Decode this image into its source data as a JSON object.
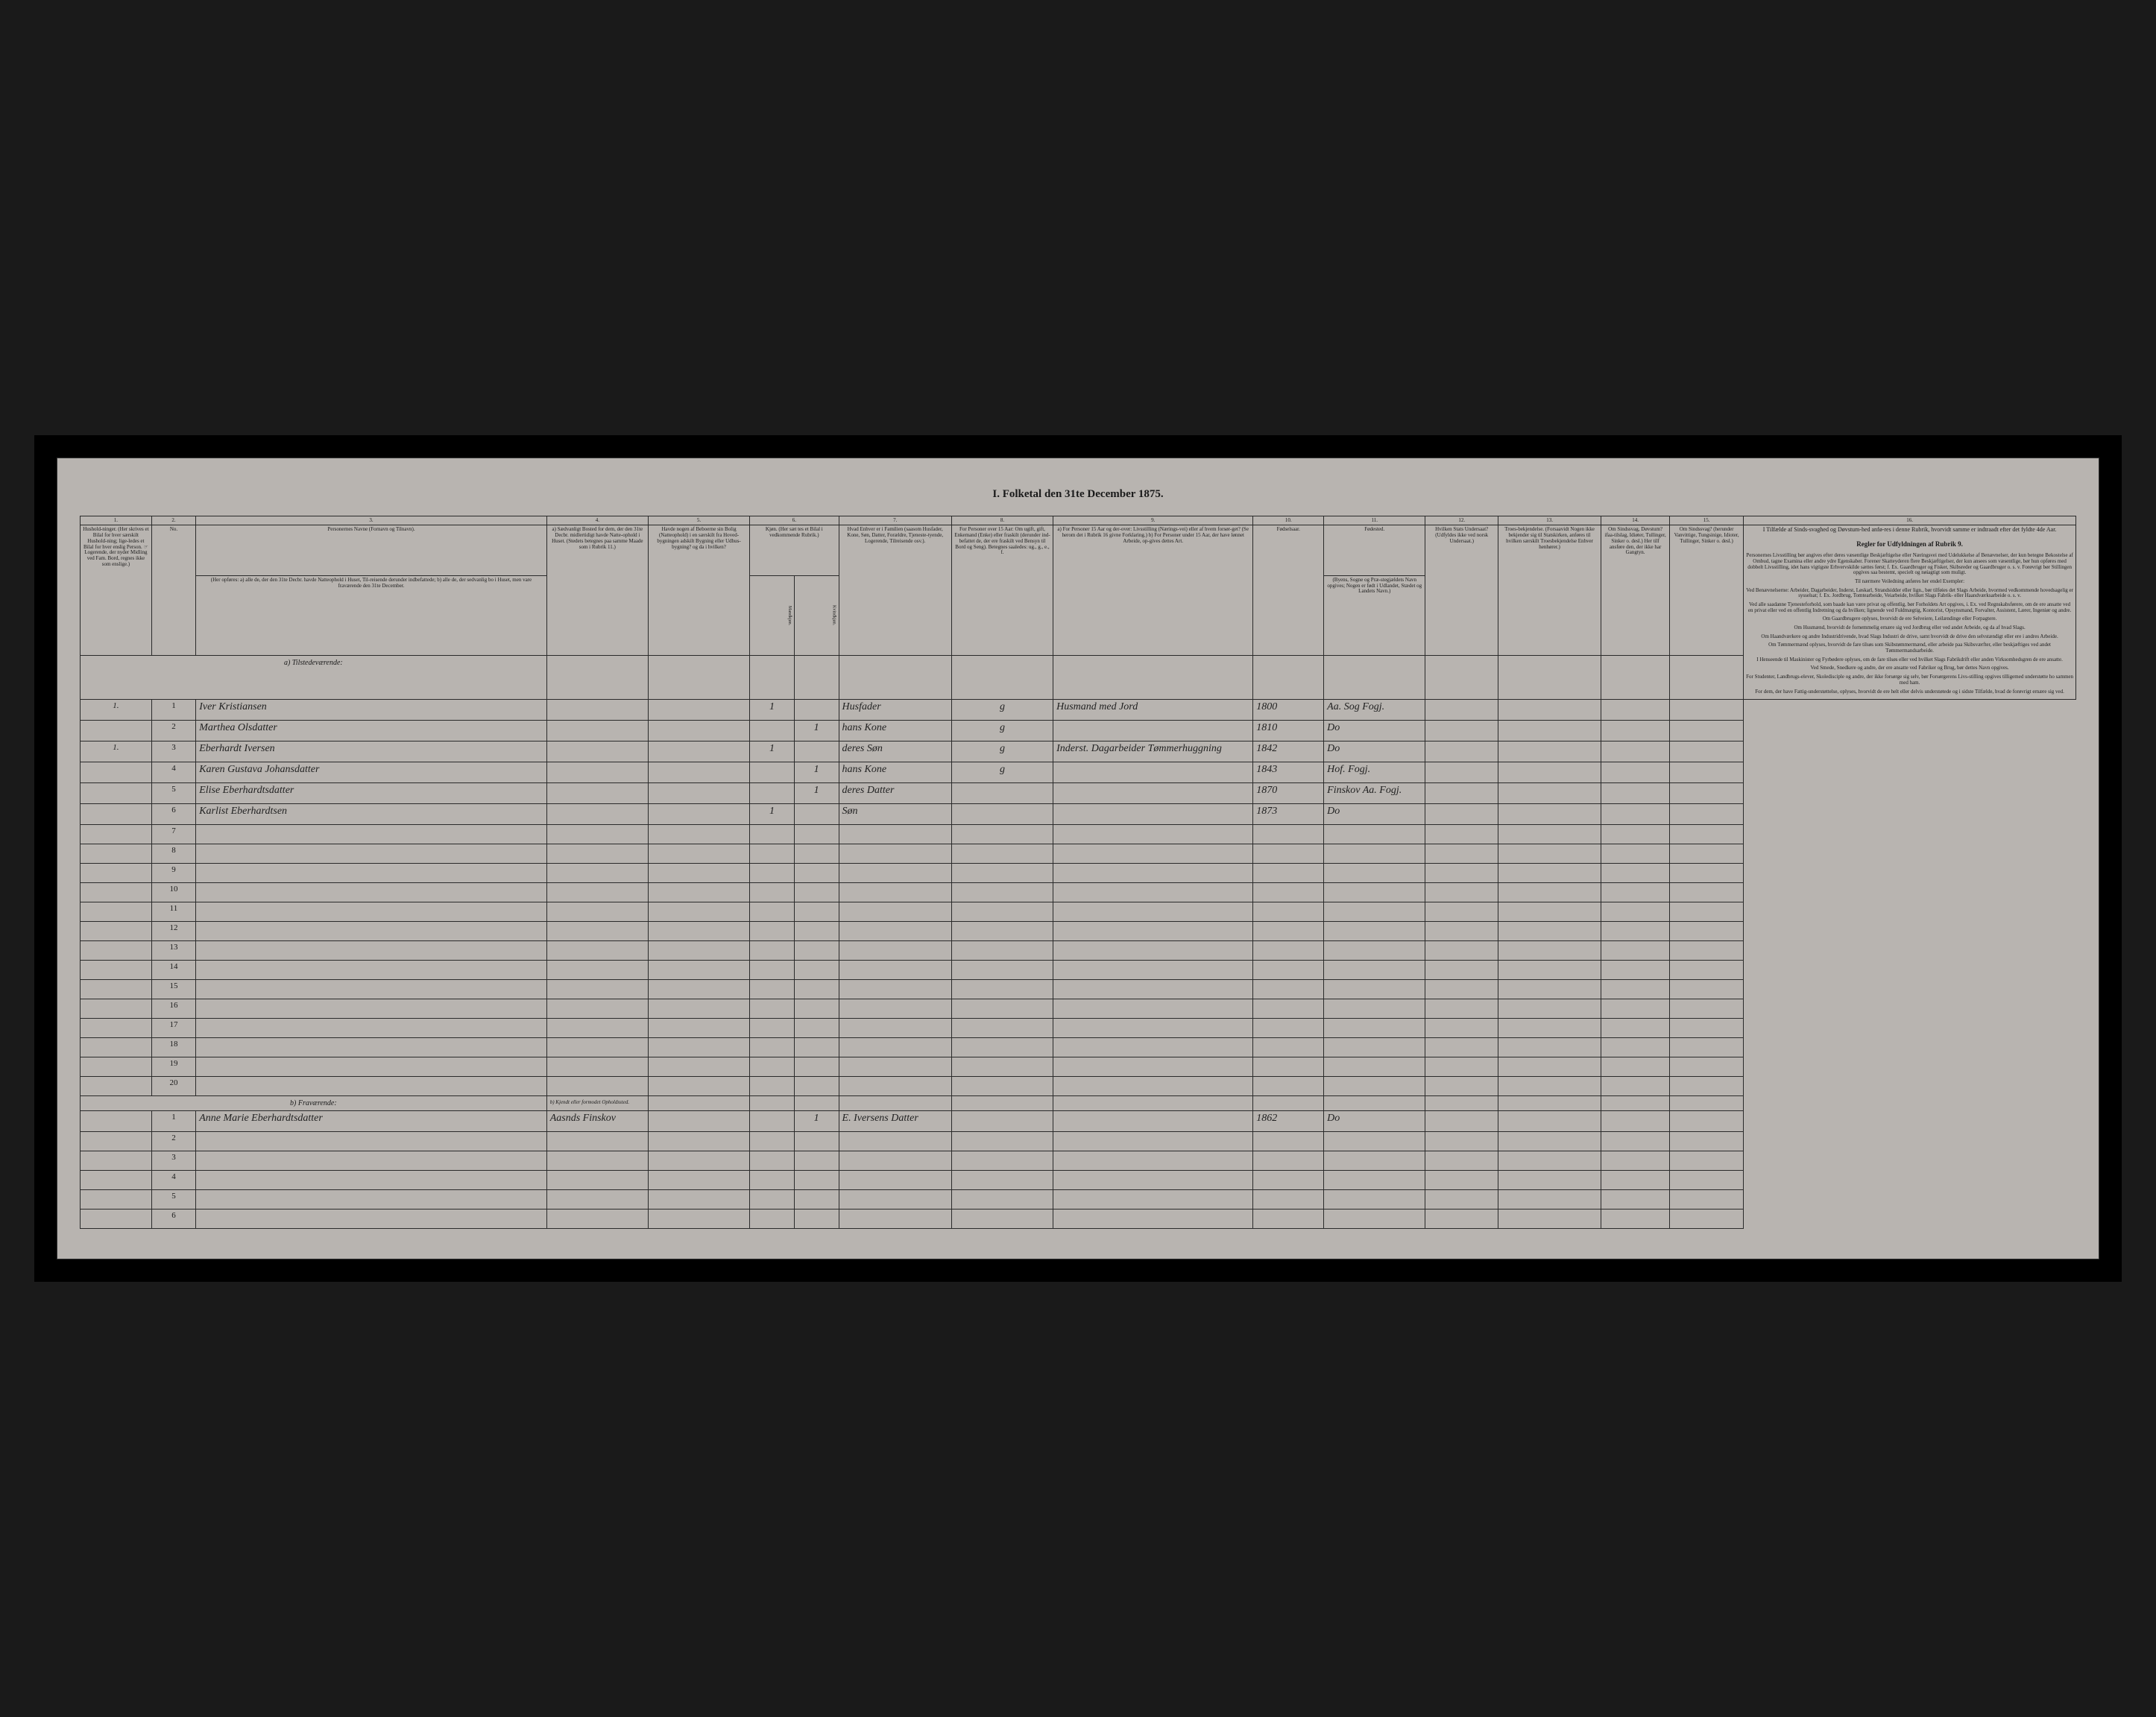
{
  "title": "I. Folketal den 31te December 1875.",
  "columns": {
    "nums": [
      "1.",
      "2.",
      "3.",
      "4.",
      "5.",
      "6.",
      "7.",
      "8.",
      "9.",
      "10.",
      "11.",
      "12.",
      "13.",
      "14.",
      "15.",
      "16."
    ],
    "h1": "Hushold-ninger. (Her skrives et Bilal for hver særskilt Hushold-ning; lige-ledes et Bilal for hver enslig Person. ☞ Logerende, der nyder Midling ved Fam. Bord, regnes ikke som enslige.)",
    "h2": "No.",
    "h3_title": "Personernes Navne (Fornavn og Tilnavn).",
    "h3_sub": "(Her opføres:\na) alle de, der den 31te Decbr. havde Natteophold i Huset, Til-reisende derunder indbefattede;\nb) alle de, der sedvanlig bo i Huset, men vare fraværende den 31te December.",
    "h4": "a) Sædvanligt Bosted for dem, der den 31te Decbr. midlertidigt havde Natte-ophold i Huset. (Stedets betegnes paa samme Maade som i Rubrik 11.)",
    "h5": "Havde nogen af Beboerne sin Bolig (Natteophold) i en særskilt fra Hoved-bygningen adskilt Bygning eller Udhus-bygning? og da i hvilken?",
    "h6": "Kjøn. (Her sæt tes et Bilal i vedkommende Rubrik.)",
    "h6a": "Mandkjøn.",
    "h6b": "Kvindkjøn.",
    "h7": "Hvad Enhver er i Familien (saasom Husfader, Kone, Søn, Datter, Forældre, Tjeneste-tyende, Logerende, Tilreisende osv.).",
    "h8": "For Personer over 15 Aar: Om ugift, gift, Enkemand (Enke) eller fraskilt (derunder ind-befattet de, der ere fraskilt ved Bensyn til Bord og Seng). Betegnes saaledes: ug., g., e., f.",
    "h9": "a) For Personer 15 Aar og der-over: Livsstilling (Nærings-vei) eller af hvem forsør-get? (Se herom det i Rubrik 16 givne Forklaring.)\nb) For Personer under 15 Aar, der have lønnet Arbeide, op-gives dettes Art.",
    "h10": "Fødselsaar.",
    "h11_title": "Fødested.",
    "h11_sub": "(Byens, Sogne og Præ-stegjældets Navn opgives; Nogen er født i Udlandet, Stædet og Landets Navn.)",
    "h12": "Hvilken Stats Undersaat? (Udfyldes ikke ved norsk Undersaat.)",
    "h13": "Troes-bekjendelse. (Forsaavidt Nogen ikke bekjender sig til Statskirken, anføres til hvilken særskilt Troesbekjendelse Enhver henhører.)",
    "h14": "Om Sindssvag, Døvstum? ifaa-tilslag, Idiøter, Tullinger, Sinker o. desl.) Her tilf ansføre den, der ikke har Gangtyn.",
    "h15": "Om Sindssvag? (herunder Vanvittige, Tungsinige, Idioter, Tullinger, Sinker o. desl.)",
    "h16_title": "I Tilfælde af Sinds-svaghed og Døvstum-hed anfø-res i denne Rubrik, hvorvidt samme er indtraadt efter det fyldte 4de Aar.",
    "sidebar_title": "Regler for Udfyldningen af Rubrik 9."
  },
  "section_a": "a) Tilstedeværende:",
  "section_b": "b) Fraværende:",
  "section_b_col4": "b) Kjendt eller formodet Opholdssted.",
  "rows_a": [
    {
      "hh": "1.",
      "n": "1",
      "name": "Iver Kristiansen",
      "m": "1",
      "k": "",
      "rel": "Husfader",
      "civ": "g",
      "occ": "Husmand med Jord",
      "year": "1800",
      "place": "Aa. Sog Fogj."
    },
    {
      "hh": "",
      "n": "2",
      "name": "Marthea Olsdatter",
      "m": "",
      "k": "1",
      "rel": "hans Kone",
      "civ": "g",
      "occ": "",
      "year": "1810",
      "place": "Do"
    },
    {
      "hh": "1.",
      "n": "3",
      "name": "Eberhardt Iversen",
      "m": "1",
      "k": "",
      "rel": "deres Søn",
      "civ": "g",
      "occ": "Inderst. Dagarbeider Tømmerhuggning",
      "year": "1842",
      "place": "Do"
    },
    {
      "hh": "",
      "n": "4",
      "name": "Karen Gustava Johansdatter",
      "m": "",
      "k": "1",
      "rel": "hans Kone",
      "civ": "g",
      "occ": "",
      "year": "1843",
      "place": "Hof. Fogj."
    },
    {
      "hh": "",
      "n": "5",
      "name": "Elise Eberhardtsdatter",
      "m": "",
      "k": "1",
      "rel": "deres Datter",
      "civ": "",
      "occ": "",
      "year": "1870",
      "place": "Finskov Aa. Fogj."
    },
    {
      "hh": "",
      "n": "6",
      "name": "Karlist Eberhardtsen",
      "m": "1",
      "k": "",
      "rel": "Søn",
      "civ": "",
      "occ": "",
      "year": "1873",
      "place": "Do"
    }
  ],
  "empty_a": [
    "7",
    "8",
    "9",
    "10",
    "11",
    "12",
    "13",
    "14",
    "15",
    "16",
    "17",
    "18",
    "19",
    "20"
  ],
  "rows_b": [
    {
      "n": "1",
      "name": "Anne Marie Eberhardtsdatter",
      "loc": "Aasnds Finskov",
      "m": "",
      "k": "1",
      "rel": "E. Iversens Datter",
      "civ": "",
      "occ": "",
      "year": "1862",
      "place": "Do"
    }
  ],
  "empty_b": [
    "2",
    "3",
    "4",
    "5",
    "6"
  ],
  "sidebar": [
    "Personernes Livsstilling bør angives efter deres væsentlige Beskjæftigelse eller Næringsvei med Udelukkelse af Benævnelser, der kun betegne Bekostelse af Ombud, tagne Examina eller andre ydre Egenskaber. Forener Skatteyderen flere Beskjæftigelser, der kun ansees som væsentlige, bør hun opføres med dobbelt Livsstilling, idet hans vigtigste Erhvervskilde sættes først; f. Ex. Gaardbruger og Fisker, Skibsreder og Gaardbruger o. s. v. Forøvrigt bør Stillingen opgives saa bestemt, specielt og nøiagtigt som muligt.",
    "Til nærmere Veiledning anføres her endel Exempler:",
    "Ved Benævnelserne: Arbeider, Dagarbeider, Inderst, Løskarl, Strandsidder eller lign., bør tilføies det Slags Arbeide, hvormed vedkommende hovedsagelig er sysselsat; f. Ex. Jordbrug, Tomtearbeide, Veiarbeide, hvilket Slags Fabrik- eller Haandværksarbeide o. s. v.",
    "Ved alle saadanne Tjenesteforhold, som baade kan være privat og offentlig, bør Forholdets Art opgives, i. Ex. ved Regnskabsførere, om de ere ansatte ved en privat eller ved en offentlig Indretning og da hvilken; lignende ved Fuldmægtig, Kontorist, Opsynsmand, Forvalter, Assistent, Lærer, Ingeniør og andre.",
    "Om Gaardbrugere oplyses, hvorvidt de ere Selveiere, Leilændinge eller Forpagtere.",
    "Om Husmænd, hvorvidt de fornemmelig ernære sig ved Jordbrug eller ved andet Arbeide, og da af hvad Slags.",
    "Om Haandværkere og andre Industridrivende, hvad Slags Industri de drive, samt hvorvidt de drive den selvstændigt eller ere i andres Arbeide.",
    "Om Tømmermænd oplyses, hvorvidt de fare tilsøs som Skibstømmermænd, eller arbeide paa Skibsværfter, eller beskjæftiges ved andet Tømmermandsarbeide.",
    "I Henseende til Maskinister og Fyrbødere oplyses, om de fare tilsøs eller ved hvilket Slags Fabrikdrift eller anden Virksomhedsgren de ere ansatte.",
    "Ved Smede, Snedkere og andre, der ere ansatte ved Fabriker og Brug, bør dettes Navn opgives.",
    "For Studenter, Landbrugs-elever, Skoledisciple og andre, der ikke forsørge sig selv, bør Forsørgerens Livs-stilling opgives tilligemed understøtte ho sammen med ham.",
    "For dem, der have Fattig-understøttelse, oplyses, hvorvidt de ere helt eller delvis understøtede og i sidste Tilfælde, hvad de forøvrigt ernære sig ved."
  ]
}
